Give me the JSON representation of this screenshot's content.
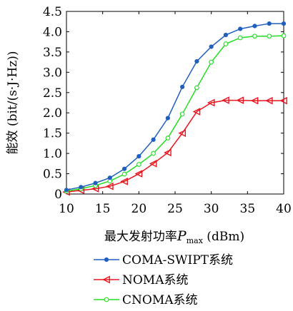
{
  "chart_data": {
    "type": "line",
    "title": "",
    "xlabel_prefix": "最大发射功率",
    "xlabel_var": "P",
    "xlabel_sub": "max",
    "xlabel_unit": " (dBm)",
    "ylabel": "能效 (bit/(s·J·Hz))",
    "xlim": [
      10,
      40
    ],
    "ylim": [
      0,
      4.5
    ],
    "x_ticks": [
      "10",
      "15",
      "20",
      "25",
      "30",
      "35",
      "40"
    ],
    "y_ticks": [
      "0",
      "0.5",
      "1.0",
      "1.5",
      "2.0",
      "2.5",
      "3.0",
      "3.5",
      "4.0",
      "4.5"
    ],
    "grid": false,
    "legend_position": "bottom",
    "x": [
      10,
      12,
      14,
      16,
      18,
      20,
      22,
      24,
      26,
      28,
      30,
      32,
      34,
      36,
      38,
      40
    ],
    "series": [
      {
        "name": "COMA-SWIPT系统",
        "color": "#1f5fbf",
        "marker": "filled-circle",
        "values": [
          0.1,
          0.17,
          0.27,
          0.4,
          0.62,
          0.93,
          1.34,
          1.87,
          2.64,
          3.27,
          3.63,
          3.92,
          4.07,
          4.14,
          4.2,
          4.2
        ]
      },
      {
        "name": "NOMA系统",
        "color": "#e8141e",
        "marker": "left-triangle",
        "values": [
          0.05,
          0.09,
          0.13,
          0.19,
          0.31,
          0.5,
          0.75,
          1.02,
          1.5,
          2.03,
          2.25,
          2.31,
          2.31,
          2.3,
          2.3,
          2.3
        ]
      },
      {
        "name": "CNOMA系统",
        "color": "#22dd22",
        "marker": "open-circle",
        "values": [
          0.07,
          0.13,
          0.21,
          0.32,
          0.49,
          0.73,
          1.0,
          1.38,
          1.97,
          2.62,
          3.25,
          3.7,
          3.85,
          3.89,
          3.89,
          3.9
        ]
      }
    ]
  }
}
